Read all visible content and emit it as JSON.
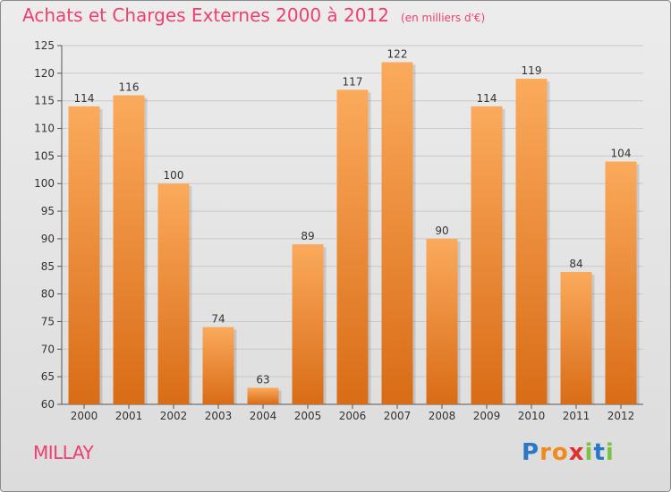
{
  "header": {
    "title": "Achats et Charges Externes 2000 à 2012",
    "unit": "(en milliers d'€)"
  },
  "footer": {
    "commune": "MILLAY",
    "logo_letters": [
      "P",
      "r",
      "o",
      "x",
      "i",
      "t",
      "i"
    ],
    "logo_colors": [
      "#2a77c7",
      "#f08a1c",
      "#f08a1c",
      "#e0302d",
      "#7cc242",
      "#2a77c7",
      "#7cc242"
    ]
  },
  "colors": {
    "title": "#ef3f6f",
    "bar_light": "#fbaa5c",
    "bar_dark": "#d96c16",
    "grid": "#c8c8c8"
  },
  "chart_data": {
    "type": "bar",
    "title": "Achats et Charges Externes 2000 à 2012",
    "subtitle": "(en milliers d'€)",
    "categories": [
      "2000",
      "2001",
      "2002",
      "2003",
      "2004",
      "2005",
      "2006",
      "2007",
      "2008",
      "2009",
      "2010",
      "2011",
      "2012"
    ],
    "values": [
      114,
      116,
      100,
      74,
      63,
      89,
      117,
      122,
      90,
      114,
      119,
      84,
      104
    ],
    "ylim": [
      60,
      125
    ],
    "yticks": [
      60,
      65,
      70,
      75,
      80,
      85,
      90,
      95,
      100,
      105,
      110,
      115,
      120,
      125
    ],
    "grid": true,
    "data_labels": true
  }
}
